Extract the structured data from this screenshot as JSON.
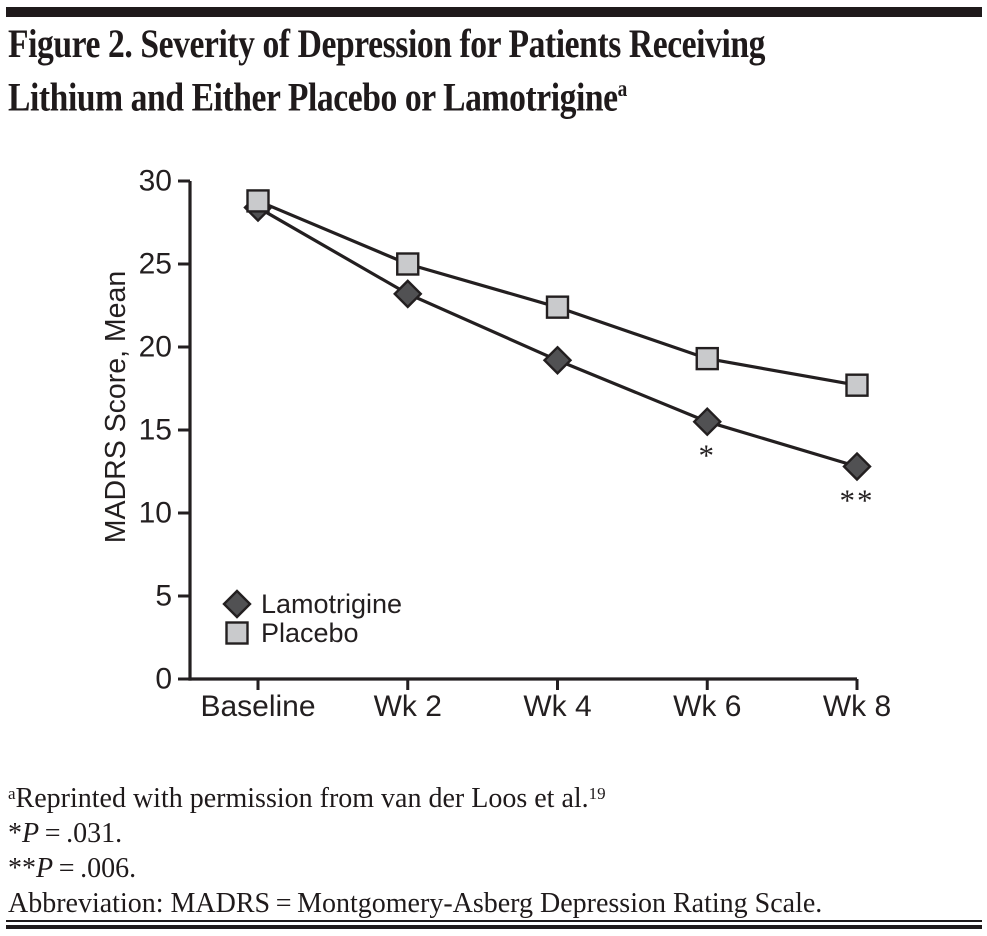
{
  "figure": {
    "title_lines": [
      "Figure 2. Severity of Depression for Patients Receiving",
      "Lithium and Either Placebo or Lamotrigine"
    ],
    "title_superscript": "a"
  },
  "chart_data": {
    "type": "line",
    "categories": [
      "Baseline",
      "Wk 2",
      "Wk 4",
      "Wk 6",
      "Wk 8"
    ],
    "series": [
      {
        "name": "Lamotrigine",
        "marker": "diamond",
        "marker_fill": "#515153",
        "values": [
          28.4,
          23.2,
          19.2,
          15.5,
          12.8
        ]
      },
      {
        "name": "Placebo",
        "marker": "square",
        "marker_fill": "#c9cacc",
        "values": [
          28.8,
          25.0,
          22.4,
          19.3,
          17.7
        ]
      }
    ],
    "ylabel": "MADRS Score, Mean",
    "xlabel": "",
    "ylim": [
      0,
      30
    ],
    "yticks": [
      0,
      5,
      10,
      15,
      20,
      25,
      30
    ],
    "grid": false,
    "legend_position": "inside-bottom-left",
    "line_color": "#231f20",
    "annotations": [
      {
        "text": "*",
        "series": "Lamotrigine",
        "category": "Wk 6",
        "position": "below"
      },
      {
        "text": "**",
        "series": "Lamotrigine",
        "category": "Wk 8",
        "position": "below"
      }
    ]
  },
  "footnotes": {
    "reprint": {
      "sup": "a",
      "text": "Reprinted with permission from van der Loos et al.",
      "ref": "19"
    },
    "p1": {
      "stars": "*",
      "p": "P",
      "rest": " = .031."
    },
    "p2": {
      "stars": "**",
      "p": "P",
      "rest": " = .006."
    },
    "abbreviation": "Abbreviation: MADRS = Montgomery-Asberg Depression Rating Scale."
  }
}
